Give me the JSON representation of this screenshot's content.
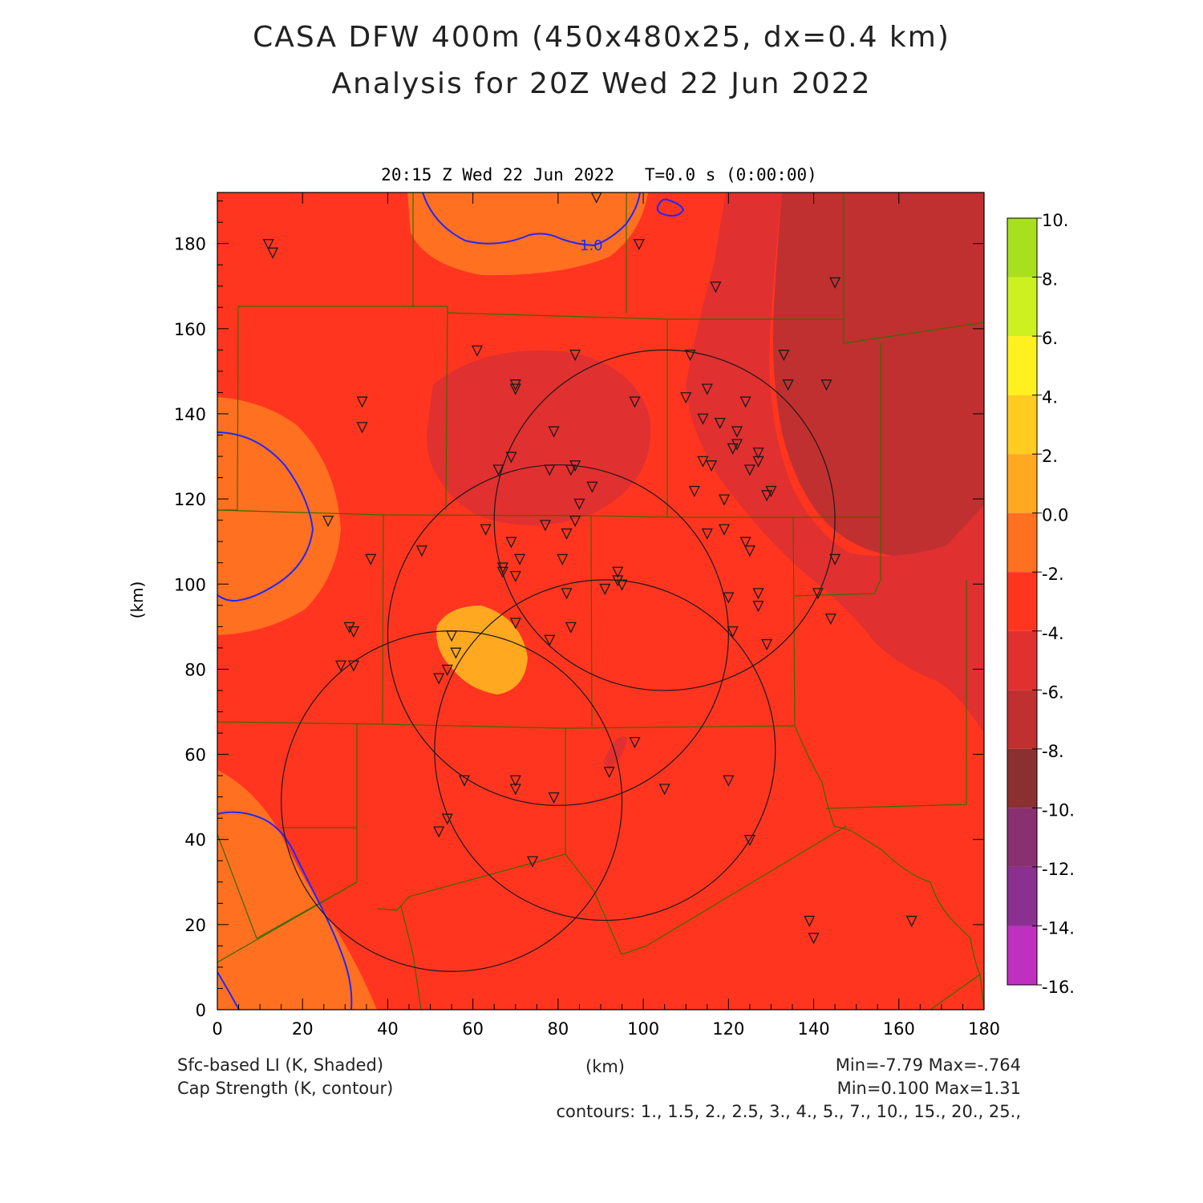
{
  "header": {
    "title_line1": "CASA DFW 400m (450x480x25, dx=0.4 km)",
    "title_line2": "Analysis for 20Z Wed 22 Jun 2022",
    "subtitle": "20:15 Z Wed 22 Jun 2022   T=0.0 s (0:00:00)"
  },
  "axes": {
    "x_label": "(km)",
    "y_label": "(km)",
    "x_ticks": [
      "0",
      "20",
      "40",
      "60",
      "80",
      "100",
      "120",
      "140",
      "160",
      "180"
    ],
    "y_ticks": [
      "0",
      "20",
      "40",
      "60",
      "80",
      "100",
      "120",
      "140",
      "160",
      "180"
    ],
    "x_range": [
      0,
      180
    ],
    "y_range": [
      0,
      192
    ]
  },
  "contour_label": "1.0",
  "colorbar": {
    "labels": [
      "10.",
      "8.",
      "6.",
      "4.",
      "2.",
      "0.0",
      "-2.",
      "-4.",
      "-6.",
      "-8.",
      "-10.",
      "-12.",
      "-14.",
      "-16."
    ],
    "colors": [
      "#a8e020",
      "#ccf020",
      "#fff020",
      "#ffcc20",
      "#ffa820",
      "#ff7020",
      "#ff3520",
      "#e03030",
      "#c03030",
      "#8a3030",
      "#883070",
      "#8a3090",
      "#c030c0",
      "#dd3ddd"
    ]
  },
  "map_colors": {
    "background": "#ff3520",
    "orange": "#ff7020",
    "light_orange": "#ffa820",
    "red": "#e03030",
    "dark_red": "#c03030",
    "contour": "#1e28ff",
    "county": "#3a6a00"
  },
  "radar_rings_km": [
    {
      "cx": 105,
      "cy": 115,
      "r": 40
    },
    {
      "cx": 80,
      "cy": 88,
      "r": 40
    },
    {
      "cx": 91,
      "cy": 61,
      "r": 40
    },
    {
      "cx": 55,
      "cy": 49,
      "r": 40
    }
  ],
  "stations_km": [
    [
      12,
      180
    ],
    [
      13,
      178
    ],
    [
      89,
      191
    ],
    [
      99,
      180
    ],
    [
      117,
      170
    ],
    [
      145,
      171
    ],
    [
      61,
      155
    ],
    [
      84,
      154
    ],
    [
      111,
      154
    ],
    [
      133,
      154
    ],
    [
      34,
      143
    ],
    [
      70,
      147
    ],
    [
      70,
      146
    ],
    [
      98,
      143
    ],
    [
      110,
      144
    ],
    [
      115,
      146
    ],
    [
      134,
      147
    ],
    [
      143,
      147
    ],
    [
      124,
      143
    ],
    [
      34,
      137
    ],
    [
      79,
      136
    ],
    [
      114,
      139
    ],
    [
      118,
      138
    ],
    [
      122,
      136
    ],
    [
      121,
      132
    ],
    [
      127,
      131
    ],
    [
      69,
      130
    ],
    [
      122,
      133
    ],
    [
      127,
      129
    ],
    [
      114,
      129
    ],
    [
      116,
      128
    ],
    [
      84,
      128
    ],
    [
      66,
      127
    ],
    [
      78,
      127
    ],
    [
      83,
      127
    ],
    [
      125,
      127
    ],
    [
      88,
      123
    ],
    [
      112,
      122
    ],
    [
      130,
      122
    ],
    [
      129,
      121
    ],
    [
      119,
      120
    ],
    [
      85,
      119
    ],
    [
      84,
      115
    ],
    [
      26,
      115
    ],
    [
      63,
      113
    ],
    [
      77,
      114
    ],
    [
      82,
      112
    ],
    [
      115,
      112
    ],
    [
      119,
      113
    ],
    [
      124,
      110
    ],
    [
      69,
      110
    ],
    [
      125,
      108
    ],
    [
      48,
      108
    ],
    [
      36,
      106
    ],
    [
      71,
      106
    ],
    [
      81,
      106
    ],
    [
      145,
      106
    ],
    [
      67,
      104
    ],
    [
      67,
      103
    ],
    [
      70,
      102
    ],
    [
      94,
      103
    ],
    [
      94,
      101
    ],
    [
      95,
      100
    ],
    [
      91,
      99
    ],
    [
      82,
      98
    ],
    [
      120,
      97
    ],
    [
      127,
      98
    ],
    [
      141,
      98
    ],
    [
      127,
      95
    ],
    [
      144,
      92
    ],
    [
      70,
      91
    ],
    [
      31,
      90
    ],
    [
      32,
      89
    ],
    [
      55,
      88
    ],
    [
      83,
      90
    ],
    [
      121,
      89
    ],
    [
      78,
      87
    ],
    [
      56,
      84
    ],
    [
      129,
      86
    ],
    [
      29,
      81
    ],
    [
      32,
      81
    ],
    [
      54,
      80
    ],
    [
      52,
      78
    ],
    [
      98,
      63
    ],
    [
      92,
      56
    ],
    [
      58,
      54
    ],
    [
      70,
      54
    ],
    [
      70,
      52
    ],
    [
      79,
      50
    ],
    [
      105,
      52
    ],
    [
      120,
      54
    ],
    [
      54,
      45
    ],
    [
      52,
      42
    ],
    [
      125,
      40
    ],
    [
      74,
      35
    ],
    [
      139,
      21
    ],
    [
      163,
      21
    ],
    [
      140,
      17
    ]
  ],
  "footer": {
    "shaded_field": "Sfc-based LI (K, Shaded)",
    "contour_field": "Cap Strength (K, contour)",
    "x_unit": "(km)",
    "shaded_minmax": "Min=-7.79 Max=-.764",
    "contour_minmax": "Min=0.100 Max=1.31",
    "contours": "contours: 1., 1.5, 2., 2.5, 3., 4., 5., 7., 10., 15., 20., 25.,"
  }
}
